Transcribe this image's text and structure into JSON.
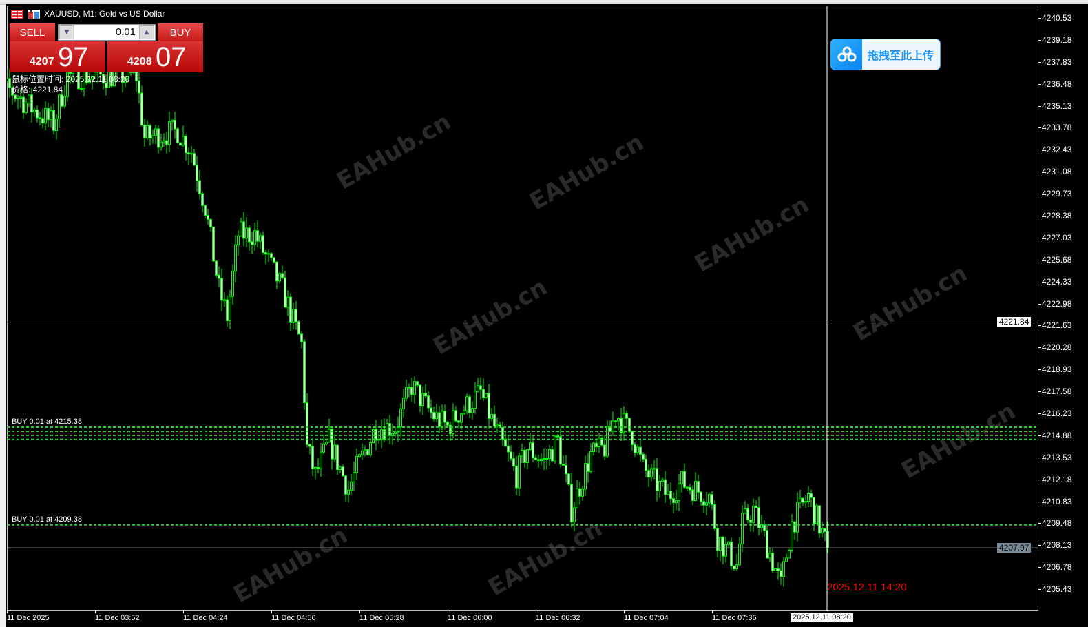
{
  "window": {
    "title": "XAUUSD, M1:  Gold vs US Dollar",
    "watermark": "EAHub.cn"
  },
  "trade_panel": {
    "sell_label": "SELL",
    "buy_label": "BUY",
    "lot": "0.01",
    "bid_prefix": "4207",
    "bid_big": "97",
    "ask_prefix": "4208",
    "ask_big": "07",
    "color": "#d02020"
  },
  "cursor_info": {
    "time_line": "鼠标位置时间: 2025.12.11 08:20",
    "price_line": "价格: 4221.84"
  },
  "upload_button": {
    "label": "拖拽至此上传",
    "icon": "cloud-icon",
    "color": "#1890f0"
  },
  "orders": [
    {
      "label": "BUY 0.01 at 4215.38",
      "price": 4215.38
    },
    {
      "label": "",
      "price": 4215.13
    },
    {
      "label": "",
      "price": 4214.88
    },
    {
      "label": "",
      "price": 4214.63
    },
    {
      "label": "BUY 0.01 at 4209.38",
      "price": 4209.38
    }
  ],
  "crosshair": {
    "price": "4221.84",
    "time": "2025.12.11 08:20"
  },
  "bid_line": {
    "price": "4207.97"
  },
  "future_time_label": "2025.12.11 14:20",
  "chart_data": {
    "type": "candlestick",
    "symbol": "XAUUSD",
    "timeframe": "M1",
    "price_axis": [
      "4240.53",
      "4239.18",
      "4237.83",
      "4236.48",
      "4235.13",
      "4233.78",
      "4232.43",
      "4231.08",
      "4229.73",
      "4228.38",
      "4227.03",
      "4225.68",
      "4224.33",
      "4222.98",
      "4221.63",
      "4220.28",
      "4218.93",
      "4217.58",
      "4216.23",
      "4214.88",
      "4213.53",
      "4212.18",
      "4210.83",
      "4209.48",
      "4208.13",
      "4206.78",
      "4205.43"
    ],
    "time_axis": [
      {
        "label": "11 Dec 2025",
        "time": "03:20"
      },
      {
        "label": "11 Dec 03:52",
        "time": "03:52"
      },
      {
        "label": "11 Dec 04:24",
        "time": "04:24"
      },
      {
        "label": "11 Dec 04:56",
        "time": "04:56"
      },
      {
        "label": "11 Dec 05:28",
        "time": "05:28"
      },
      {
        "label": "11 Dec 06:00",
        "time": "06:00"
      },
      {
        "label": "11 Dec 06:32",
        "time": "06:32"
      },
      {
        "label": "11 Dec 07:04",
        "time": "07:04"
      },
      {
        "label": "11 Dec 07:36",
        "time": "07:36"
      }
    ],
    "approx_close_path": [
      [
        "03:21",
        4236.13
      ],
      [
        "03:30",
        4234.86
      ],
      [
        "03:37",
        4234.01
      ],
      [
        "03:42",
        4236.97
      ],
      [
        "04:07",
        4236.97
      ],
      [
        "04:10",
        4233.16
      ],
      [
        "04:22",
        4233.59
      ],
      [
        "04:27",
        4232.32
      ],
      [
        "04:32",
        4228.93
      ],
      [
        "04:37",
        4223.85
      ],
      [
        "04:40",
        4222.16
      ],
      [
        "04:44",
        4227.24
      ],
      [
        "04:50",
        4227.24
      ],
      [
        "04:55",
        4225.54
      ],
      [
        "05:00",
        4223.85
      ],
      [
        "05:07",
        4220.46
      ],
      [
        "05:09",
        4214.11
      ],
      [
        "05:12",
        4212.42
      ],
      [
        "05:17",
        4214.53
      ],
      [
        "05:24",
        4211.57
      ],
      [
        "05:27",
        4212.84
      ],
      [
        "05:34",
        4215.38
      ],
      [
        "05:41",
        4215.38
      ],
      [
        "05:47",
        4217.92
      ],
      [
        "05:54",
        4216.23
      ],
      [
        "06:00",
        4215.38
      ],
      [
        "06:04",
        4216.23
      ],
      [
        "06:12",
        4217.5
      ],
      [
        "06:17",
        4215.38
      ],
      [
        "06:25",
        4212.42
      ],
      [
        "06:29",
        4214.11
      ],
      [
        "06:35",
        4213.26
      ],
      [
        "06:40",
        4214.53
      ],
      [
        "06:45",
        4210.3
      ],
      [
        "06:52",
        4213.69
      ],
      [
        "06:57",
        4214.11
      ],
      [
        "07:01",
        4216.23
      ],
      [
        "07:07",
        4214.96
      ],
      [
        "07:11",
        4212.84
      ],
      [
        "07:20",
        4211.15
      ],
      [
        "07:25",
        4211.99
      ],
      [
        "07:35",
        4211.15
      ],
      [
        "07:38",
        4208.61
      ],
      [
        "07:45",
        4206.91
      ],
      [
        "07:47",
        4209.45
      ],
      [
        "07:51",
        4210.3
      ],
      [
        "07:55",
        4208.61
      ],
      [
        "08:01",
        4205.64
      ],
      [
        "08:05",
        4209.45
      ],
      [
        "08:11",
        4211.15
      ],
      [
        "08:18",
        4207.97
      ]
    ],
    "colors": {
      "candle": "#00ff00",
      "order_line": "#32cd32",
      "bid_line": "#a0a0a0",
      "crosshair": "#ffffff"
    }
  }
}
